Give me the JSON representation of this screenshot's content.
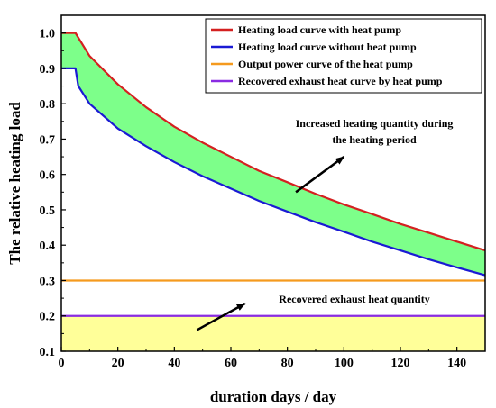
{
  "chart_data": {
    "type": "line",
    "xlabel": "duration days / day",
    "ylabel": "The relative heating load",
    "xlim": [
      0,
      150
    ],
    "ylim": [
      0.1,
      1.05
    ],
    "xticks": [
      0,
      20,
      40,
      60,
      80,
      100,
      120,
      140
    ],
    "yticks": [
      0.1,
      0.2,
      0.3,
      0.4,
      0.5,
      0.6,
      0.7,
      0.8,
      0.9,
      1.0
    ],
    "tick_labels_x": [
      "0",
      "20",
      "40",
      "60",
      "80",
      "100",
      "120",
      "140"
    ],
    "tick_labels_y": [
      "0.1",
      "0.2",
      "0.3",
      "0.4",
      "0.5",
      "0.6",
      "0.7",
      "0.8",
      "0.9",
      "1.0"
    ],
    "grid": false,
    "legend_position": "top-right",
    "colors": {
      "with_heat_pump": "#d42020",
      "without_heat_pump": "#1a1ad4",
      "output_power": "#f59a1e",
      "recovered_exhaust": "#8a2be2",
      "green_fill": "#7dff8a",
      "yellow_fill": "#ffff99"
    },
    "series": [
      {
        "name": "Heating load curve with heat pump",
        "key": "with_heat_pump",
        "x": [
          0,
          5,
          10,
          20,
          30,
          40,
          50,
          60,
          70,
          80,
          90,
          100,
          110,
          120,
          130,
          140,
          150
        ],
        "values": [
          1.0,
          1.0,
          0.935,
          0.855,
          0.79,
          0.735,
          0.69,
          0.65,
          0.61,
          0.578,
          0.545,
          0.515,
          0.488,
          0.46,
          0.435,
          0.41,
          0.385
        ]
      },
      {
        "name": "Heating load curve without heat pump",
        "key": "without_heat_pump",
        "x": [
          0,
          5,
          6,
          10,
          20,
          30,
          40,
          50,
          60,
          70,
          80,
          90,
          100,
          110,
          120,
          130,
          140,
          150
        ],
        "values": [
          0.9,
          0.9,
          0.85,
          0.8,
          0.73,
          0.68,
          0.635,
          0.595,
          0.56,
          0.525,
          0.495,
          0.465,
          0.438,
          0.41,
          0.385,
          0.36,
          0.337,
          0.315
        ]
      },
      {
        "name": "Output power curve of the heat pump",
        "key": "output_power",
        "x": [
          0,
          150
        ],
        "values": [
          0.3,
          0.3
        ]
      },
      {
        "name": "Recovered exhaust heat  curve by heat pump",
        "key": "recovered_exhaust",
        "x": [
          0,
          150
        ],
        "values": [
          0.2,
          0.2
        ]
      }
    ],
    "annotations": [
      {
        "key": "increased",
        "lines": [
          "Increased heating quantity during",
          "the heating period"
        ],
        "arrow_from": [
          83,
          0.55
        ],
        "arrow_to": [
          100,
          0.65
        ]
      },
      {
        "key": "recovered",
        "lines": [
          "Recovered exhaust heat  quantity"
        ],
        "arrow_from": [
          48,
          0.16
        ],
        "arrow_to": [
          65,
          0.235
        ]
      }
    ]
  }
}
